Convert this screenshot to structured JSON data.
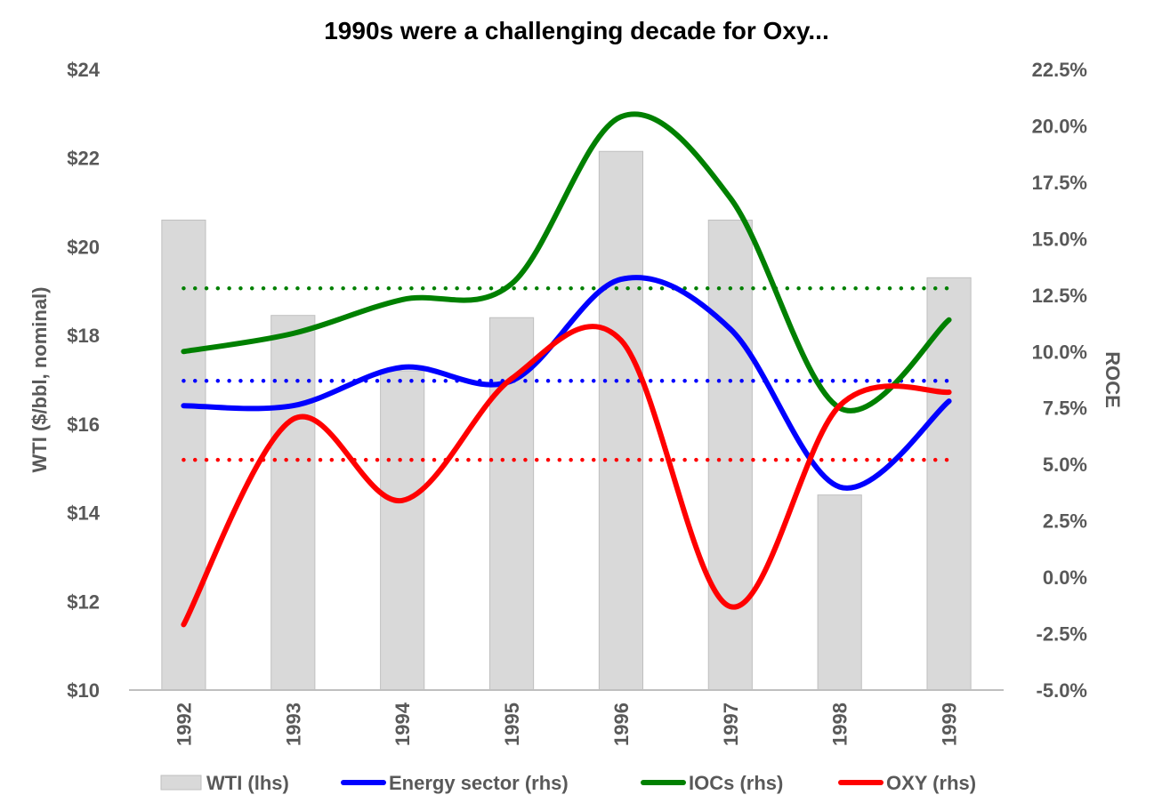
{
  "chart_data": {
    "type": "bar+line",
    "title": "1990s were a challenging decade for Oxy...",
    "categories": [
      "1992",
      "1993",
      "1994",
      "1995",
      "1996",
      "1997",
      "1998",
      "1999"
    ],
    "left_axis": {
      "label": "WTI ($/bbl, nominal)",
      "min": 10,
      "max": 24,
      "step": 2,
      "tick_labels": [
        "$10",
        "$12",
        "$14",
        "$16",
        "$18",
        "$20",
        "$22",
        "$24"
      ]
    },
    "right_axis": {
      "label": "ROCE",
      "min": -5,
      "max": 22.5,
      "step": 2.5,
      "tick_labels": [
        "-5.0%",
        "-2.5%",
        "0.0%",
        "2.5%",
        "5.0%",
        "7.5%",
        "10.0%",
        "12.5%",
        "15.0%",
        "17.5%",
        "20.0%",
        "22.5%"
      ]
    },
    "bars": {
      "name": "WTI (lhs)",
      "axis": "left",
      "color": "#d9d9d9",
      "values": [
        20.6,
        18.45,
        17.2,
        18.4,
        22.15,
        20.6,
        14.4,
        19.3
      ]
    },
    "series": [
      {
        "name": "Energy sector (rhs)",
        "axis": "right",
        "color": "#0000ff",
        "values": [
          7.6,
          7.6,
          9.3,
          8.7,
          13.2,
          11.0,
          4.0,
          7.8
        ],
        "average": 8.7
      },
      {
        "name": "IOCs (rhs)",
        "axis": "right",
        "color": "#008000",
        "values": [
          10.0,
          10.8,
          12.3,
          13.0,
          20.4,
          16.8,
          7.5,
          11.4
        ],
        "average": 12.8
      },
      {
        "name": "OXY (rhs)",
        "axis": "right",
        "color": "#ff0000",
        "values": [
          -2.1,
          7.0,
          3.4,
          8.8,
          10.5,
          -1.3,
          7.6,
          8.2
        ],
        "average": 5.2
      }
    ],
    "legend": {
      "position": "bottom"
    },
    "grid": false
  }
}
